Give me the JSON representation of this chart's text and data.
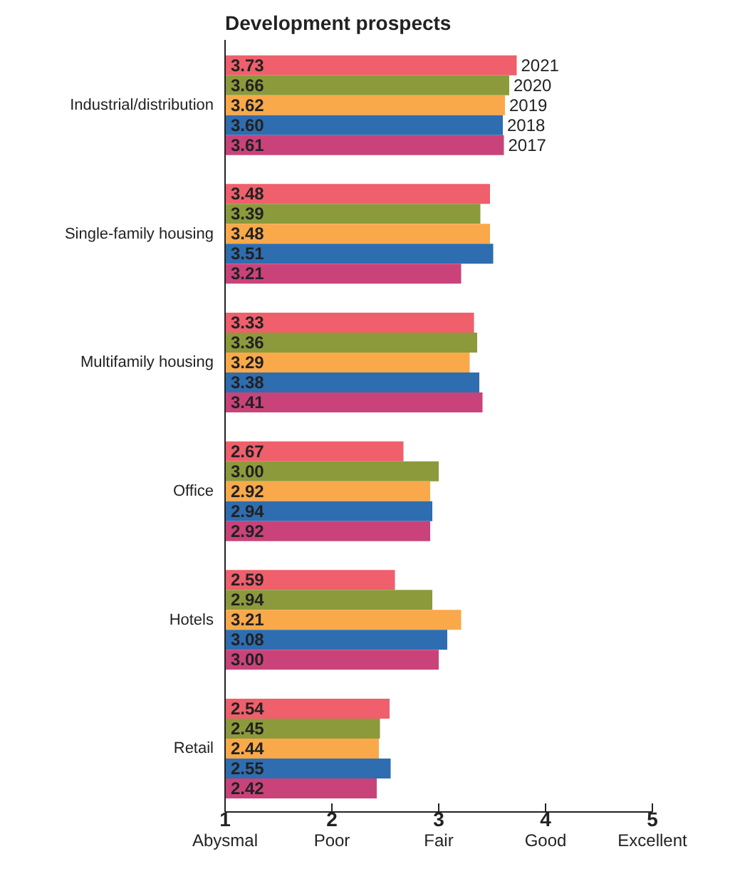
{
  "chart_data": {
    "type": "bar",
    "orientation": "horizontal",
    "title": "Development prospects",
    "categories": [
      "Industrial/distribution",
      "Single-family housing",
      "Multifamily housing",
      "Office",
      "Hotels",
      "Retail"
    ],
    "series": [
      {
        "name": "2021",
        "color": "#ef5f6c",
        "values": [
          3.73,
          3.48,
          3.33,
          2.67,
          2.59,
          2.54
        ],
        "value_labels": [
          "3.73",
          "3.48",
          "3.33",
          "2.67",
          "2.59",
          "2.54"
        ]
      },
      {
        "name": "2020",
        "color": "#8c9a3c",
        "values": [
          3.66,
          3.39,
          3.36,
          3.0,
          2.94,
          2.45
        ],
        "value_labels": [
          "3.66",
          "3.39",
          "3.36",
          "3.00",
          "2.94",
          "2.45"
        ]
      },
      {
        "name": "2019",
        "color": "#f9a94a",
        "values": [
          3.62,
          3.48,
          3.29,
          2.92,
          3.21,
          2.44
        ],
        "value_labels": [
          "3.62",
          "3.48",
          "3.29",
          "2.92",
          "3.21",
          "2.44"
        ]
      },
      {
        "name": "2018",
        "color": "#2e6db0",
        "values": [
          3.6,
          3.51,
          3.38,
          2.94,
          3.08,
          2.55
        ],
        "value_labels": [
          "3.60",
          "3.51",
          "3.38",
          "2.94",
          "3.08",
          "2.55"
        ]
      },
      {
        "name": "2017",
        "color": "#c9437a",
        "values": [
          3.61,
          3.21,
          3.41,
          2.92,
          3.0,
          2.42
        ],
        "value_labels": [
          "3.61",
          "3.21",
          "3.41",
          "2.92",
          "3.00",
          "2.42"
        ]
      }
    ],
    "xlim": [
      1,
      5
    ],
    "xticks": [
      {
        "value": 1,
        "label": "1\nAbysmal"
      },
      {
        "value": 2,
        "label": "2\nPoor"
      },
      {
        "value": 3,
        "label": "3\nFair"
      },
      {
        "value": 4,
        "label": "4\nGood"
      },
      {
        "value": 5,
        "label": "5\nExcellent"
      }
    ]
  }
}
